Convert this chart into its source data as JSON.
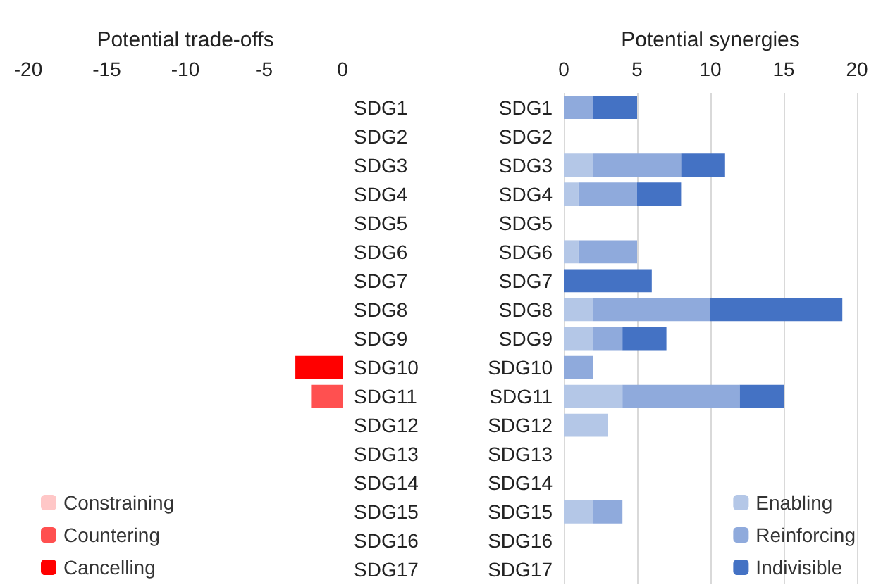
{
  "chart_data": [
    {
      "type": "bar",
      "orientation": "horizontal",
      "stacked": true,
      "xlabel": "Potential trade-offs",
      "categories": [
        "SDG1",
        "SDG2",
        "SDG3",
        "SDG4",
        "SDG5",
        "SDG6",
        "SDG7",
        "SDG8",
        "SDG9",
        "SDG10",
        "SDG11",
        "SDG12",
        "SDG13",
        "SDG14",
        "SDG15",
        "SDG16",
        "SDG17"
      ],
      "series": [
        {
          "name": "Constraining",
          "color": "#ffc7c7",
          "values": [
            null,
            null,
            null,
            null,
            null,
            null,
            null,
            null,
            null,
            null,
            null,
            null,
            null,
            null,
            null,
            null,
            null
          ]
        },
        {
          "name": "Countering",
          "color": "#ff5050",
          "values": [
            null,
            null,
            null,
            null,
            null,
            null,
            null,
            null,
            null,
            null,
            -2,
            null,
            null,
            null,
            null,
            null,
            null
          ]
        },
        {
          "name": "Cancelling",
          "color": "#ff0000",
          "values": [
            null,
            null,
            null,
            null,
            null,
            null,
            null,
            null,
            null,
            -3,
            null,
            null,
            null,
            null,
            null,
            null,
            null
          ]
        }
      ],
      "xlim": [
        -20,
        0
      ],
      "xticks": [
        -20,
        -15,
        -10,
        -5,
        0
      ],
      "grid": false,
      "legend": "bottom left"
    },
    {
      "type": "bar",
      "orientation": "horizontal",
      "stacked": true,
      "xlabel": "Potential synergies",
      "categories": [
        "SDG1",
        "SDG2",
        "SDG3",
        "SDG4",
        "SDG5",
        "SDG6",
        "SDG7",
        "SDG8",
        "SDG9",
        "SDG10",
        "SDG11",
        "SDG12",
        "SDG13",
        "SDG14",
        "SDG15",
        "SDG16",
        "SDG17"
      ],
      "series": [
        {
          "name": "Enabling",
          "color": "#b4c7e7",
          "values": [
            null,
            null,
            2,
            1,
            null,
            1,
            null,
            2,
            2,
            null,
            4,
            3,
            null,
            null,
            2,
            null,
            null
          ]
        },
        {
          "name": "Reinforcing",
          "color": "#8faadc",
          "values": [
            2,
            null,
            6,
            4,
            null,
            4,
            null,
            8,
            2,
            2,
            8,
            null,
            null,
            null,
            2,
            null,
            null
          ]
        },
        {
          "name": "Indivisible",
          "color": "#4472c4",
          "values": [
            3,
            null,
            3,
            3,
            null,
            null,
            6,
            9,
            3,
            null,
            3,
            null,
            null,
            null,
            null,
            null,
            null
          ]
        }
      ],
      "xlim": [
        0,
        20
      ],
      "xticks": [
        0,
        5,
        10,
        15,
        20
      ],
      "grid": "x",
      "legend": "bottom right"
    }
  ]
}
